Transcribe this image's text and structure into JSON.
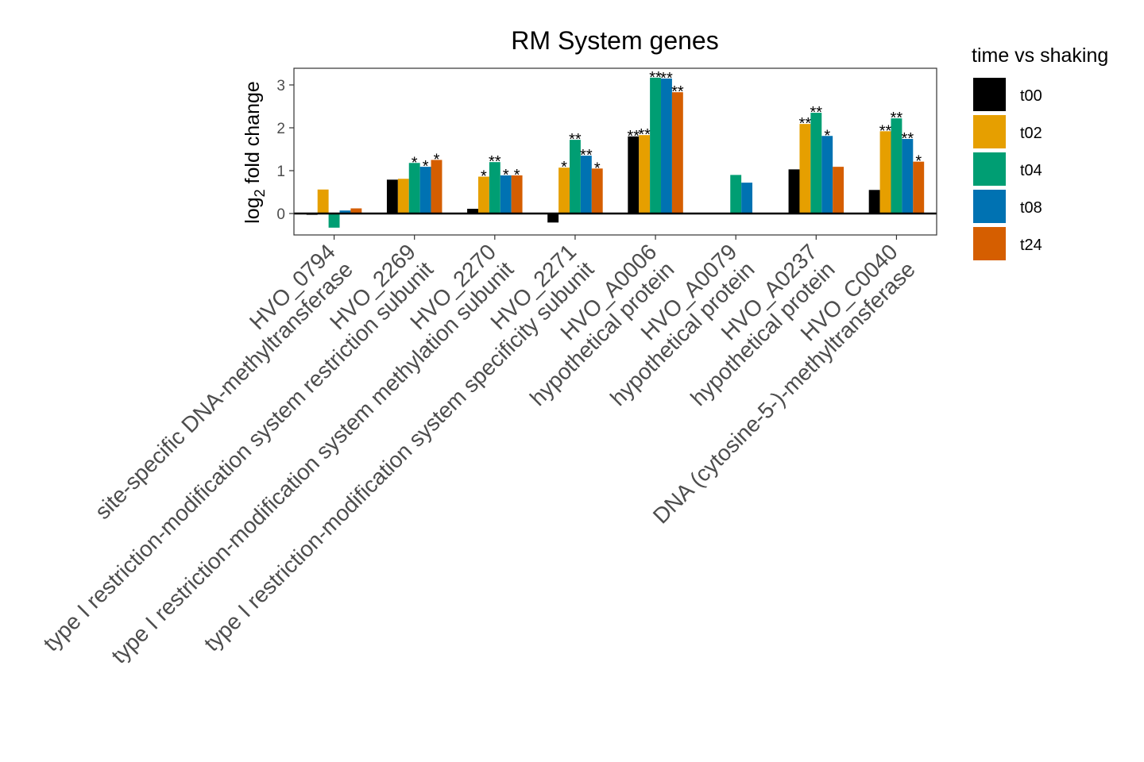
{
  "chart_data": {
    "type": "bar",
    "title": "RM System genes",
    "ylabel": {
      "prefix": "log",
      "subscript": "2",
      "suffix": " fold change"
    },
    "ylim": [
      -0.5,
      3.4
    ],
    "yticks": [
      0,
      1,
      2,
      3
    ],
    "legend": {
      "title": "time vs shaking",
      "placement": "right"
    },
    "categories": [
      {
        "id": "HVO_0794",
        "desc": "site-specific DNA-methyltransferase"
      },
      {
        "id": "HVO_2269",
        "desc": "type I restriction-modification system restriction subunit"
      },
      {
        "id": "HVO_2270",
        "desc": "type I restriction-modification system methylation subunit"
      },
      {
        "id": "HVO_2271",
        "desc": "type I restriction-modification system specificity subunit"
      },
      {
        "id": "HVO_A0006",
        "desc": "hypothetical protein"
      },
      {
        "id": "HVO_A0079",
        "desc": "hypothetical protein"
      },
      {
        "id": "HVO_A0237",
        "desc": "hypothetical protein"
      },
      {
        "id": "HVO_C0040",
        "desc": "DNA (cytosine-5-)-methyltransferase"
      }
    ],
    "series": [
      {
        "name": "t00",
        "color": "#000000",
        "values": [
          -0.03,
          0.79,
          0.11,
          -0.21,
          1.8,
          null,
          1.03,
          0.55
        ],
        "sig": [
          "",
          "",
          "",
          "",
          "**",
          "",
          "",
          ""
        ]
      },
      {
        "name": "t02",
        "color": "#E69F00",
        "values": [
          0.56,
          0.81,
          0.86,
          1.07,
          1.83,
          null,
          2.09,
          1.92
        ],
        "sig": [
          "",
          "",
          "*",
          "*",
          "**",
          "",
          "**",
          "**"
        ]
      },
      {
        "name": "t04",
        "color": "#009E73",
        "values": [
          -0.33,
          1.18,
          1.2,
          1.72,
          3.17,
          0.9,
          2.35,
          2.22
        ],
        "sig": [
          "",
          "*",
          "**",
          "**",
          "**",
          "",
          "**",
          "**"
        ]
      },
      {
        "name": "t08",
        "color": "#0072B2",
        "values": [
          0.07,
          1.09,
          0.89,
          1.35,
          3.15,
          0.72,
          1.81,
          1.74
        ],
        "sig": [
          "",
          "*",
          "*",
          "**",
          "**",
          "",
          "*",
          "**"
        ]
      },
      {
        "name": "t24",
        "color": "#D55E00",
        "values": [
          0.12,
          1.25,
          0.89,
          1.05,
          2.83,
          null,
          1.09,
          1.21
        ],
        "sig": [
          "",
          "*",
          "*",
          "*",
          "**",
          "",
          "",
          "*"
        ]
      }
    ]
  }
}
